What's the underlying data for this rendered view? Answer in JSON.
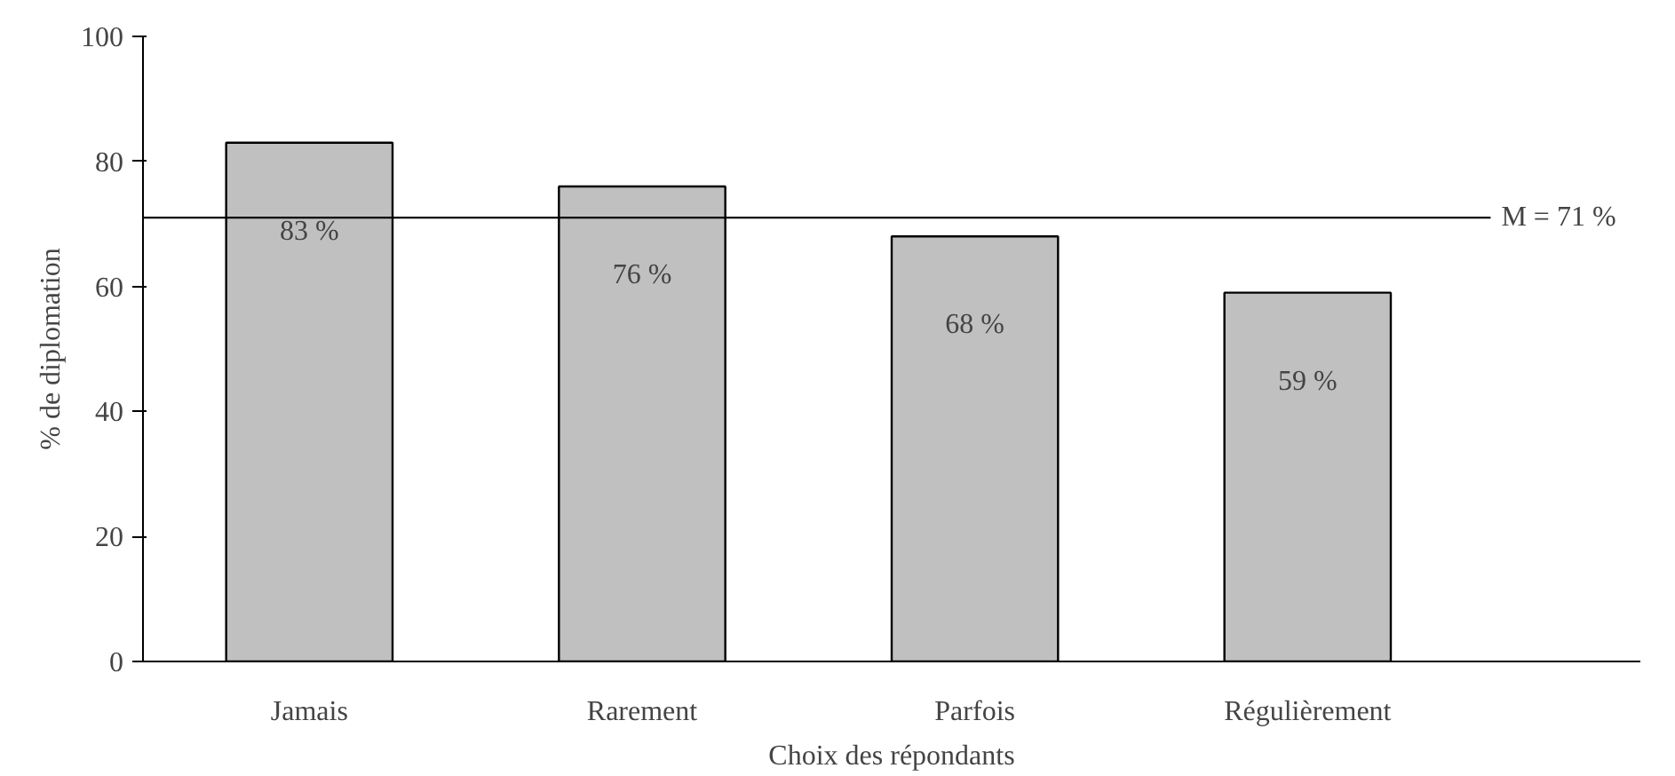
{
  "chart_data": {
    "type": "bar",
    "xlabel": "Choix des répondants",
    "ylabel": "% de diplomation",
    "categories": [
      "Jamais",
      "Rarement",
      "Parfois",
      "Régulièrement"
    ],
    "values": [
      83,
      76,
      68,
      59
    ],
    "color": "#c0c0c0",
    "value_labels": [
      "83 %",
      "76 %",
      "68 %",
      "59 %"
    ],
    "ylim": [
      0,
      100
    ],
    "yticks": [
      0,
      20,
      40,
      60,
      80,
      100
    ],
    "grid": false,
    "ref_lines": [
      {
        "axis": "y",
        "value": 71,
        "label": "M = 71 %",
        "color": "#000000"
      }
    ]
  }
}
